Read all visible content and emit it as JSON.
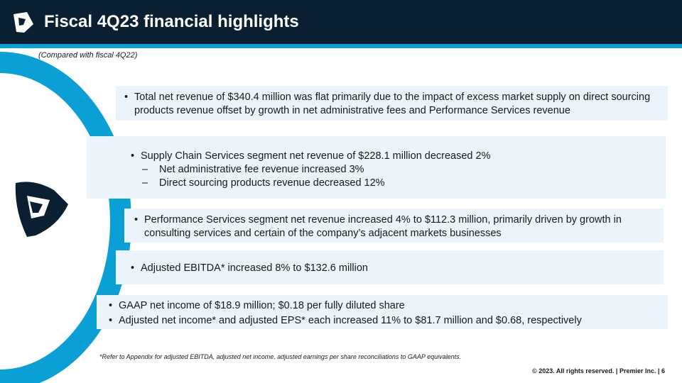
{
  "header": {
    "title": "Fiscal 4Q23 financial highlights",
    "subtitle": "(Compared with fiscal 4Q22)"
  },
  "bullets": {
    "box1": [
      "Total net revenue of $340.4 million was flat primarily due to the impact of excess market supply on direct sourcing products revenue offset by growth in net administrative fees and Performance Services revenue"
    ],
    "box2": {
      "main": "Supply Chain Services segment net revenue of $228.1 million decreased 2%",
      "sub": [
        "Net administrative fee revenue increased 3%",
        "Direct sourcing products revenue decreased 12%"
      ]
    },
    "box3": [
      "Performance Services segment net revenue increased 4% to $112.3 million, primarily driven by growth in consulting services and certain of the company’s adjacent markets businesses"
    ],
    "box4": [
      "Adjusted EBITDA* increased 8% to $132.6 million"
    ],
    "box5": [
      "GAAP net income of $18.9 million; $0.18 per fully diluted share",
      "Adjusted net income* and adjusted EPS* each increased 11% to $81.7 million and $0.68, respectively"
    ]
  },
  "footnote": "*Refer to Appendix for adjusted EBITDA, adjusted net income, adjusted earnings per share reconciliations to GAAP equivalents.",
  "footer": "© 2023. All rights reserved.  |  Premier Inc.  |  6",
  "colors": {
    "navy": "#0b1f33",
    "accent": "#0aa0d6",
    "box": "#eaf4fa"
  }
}
